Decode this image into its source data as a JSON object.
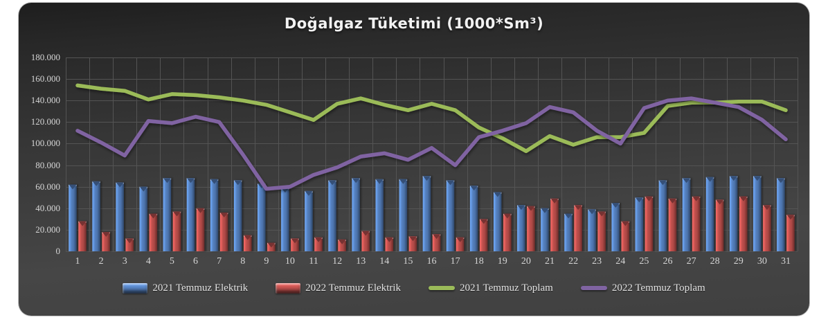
{
  "title": "Doğalgaz Tüketimi (1000*Sm³)",
  "chart_data": {
    "type": "combo",
    "title": "Doğalgaz Tüketimi (1000*Sm³)",
    "xlabel": "",
    "ylabel": "",
    "ylim": [
      0,
      180000
    ],
    "ytick_interval": 20000,
    "ytick_labels": [
      "0",
      "20.000",
      "40.000",
      "60.000",
      "80.000",
      "100.000",
      "120.000",
      "140.000",
      "160.000",
      "180.000"
    ],
    "grid": true,
    "legend_position": "bottom",
    "categories": [
      "1",
      "2",
      "3",
      "4",
      "5",
      "6",
      "7",
      "8",
      "9",
      "10",
      "11",
      "12",
      "13",
      "14",
      "15",
      "16",
      "17",
      "18",
      "19",
      "20",
      "21",
      "22",
      "23",
      "24",
      "25",
      "26",
      "27",
      "28",
      "29",
      "30",
      "31"
    ],
    "series": [
      {
        "name": "2021 Temmuz Elektrik",
        "kind": "bar",
        "color": "#5581C0",
        "values": [
          62000,
          65000,
          64000,
          60000,
          68000,
          68000,
          67000,
          66000,
          63000,
          59000,
          56000,
          66000,
          68000,
          67000,
          67000,
          70000,
          66000,
          61000,
          55000,
          43000,
          40000,
          35000,
          39000,
          45000,
          50000,
          66000,
          68000,
          69000,
          70000,
          70000,
          68000
        ]
      },
      {
        "name": "2022 Temmuz Elektrik",
        "kind": "bar",
        "color": "#C0504D",
        "values": [
          28000,
          18000,
          12000,
          35000,
          37000,
          40000,
          36000,
          15000,
          8000,
          12000,
          13000,
          11000,
          19000,
          13000,
          14000,
          16000,
          13000,
          30000,
          35000,
          42000,
          49000,
          43000,
          37000,
          28000,
          51000,
          49000,
          51000,
          48000,
          51000,
          43000,
          34000
        ]
      },
      {
        "name": "2021 Temmuz Toplam",
        "kind": "line",
        "color": "#9BBB59",
        "values": [
          154000,
          151000,
          149000,
          141000,
          146000,
          145000,
          143000,
          140000,
          136000,
          129000,
          122000,
          137000,
          142000,
          136000,
          131000,
          137000,
          131000,
          115000,
          105000,
          93000,
          107000,
          99000,
          106000,
          106000,
          110000,
          135000,
          138000,
          138000,
          139000,
          139000,
          131000
        ]
      },
      {
        "name": "2022 Temmuz Toplam",
        "kind": "line",
        "color": "#8064A2",
        "values": [
          112000,
          101000,
          89000,
          121000,
          119000,
          125000,
          120000,
          90000,
          58000,
          60000,
          71000,
          78000,
          88000,
          91000,
          85000,
          96000,
          80000,
          106000,
          112000,
          119000,
          134000,
          129000,
          112000,
          100000,
          133000,
          140000,
          142000,
          138000,
          134000,
          122000,
          104000
        ]
      }
    ],
    "gridline_color": "#545454",
    "background": "dark-gradient"
  }
}
